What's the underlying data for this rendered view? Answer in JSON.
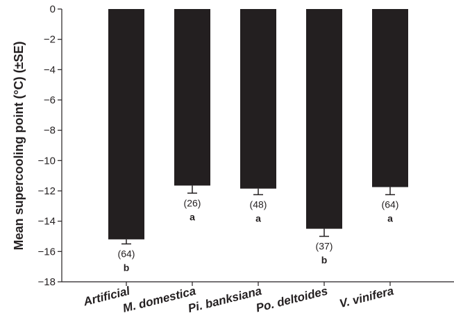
{
  "chart_data": {
    "type": "bar",
    "title": "",
    "xlabel": "",
    "ylabel": "Mean supercooling point (°C) (±SE)",
    "ylim": [
      -18,
      0
    ],
    "yticks": [
      0,
      -2,
      -4,
      -6,
      -8,
      -10,
      -12,
      -14,
      -16,
      -18
    ],
    "ytick_labels": [
      "0",
      "−2",
      "−4",
      "−6",
      "−8",
      "−10",
      "−12",
      "−14",
      "−16",
      "−18"
    ],
    "categories": [
      "Artificial",
      "M. domestica",
      "Pi. banksiana",
      "Po. deltoides",
      "V. vinifera"
    ],
    "values": [
      -15.2,
      -11.65,
      -11.85,
      -14.5,
      -11.75
    ],
    "errors": [
      0.3,
      0.5,
      0.4,
      0.5,
      0.5
    ],
    "n_labels": [
      "(64)",
      "(26)",
      "(48)",
      "(37)",
      "(64)"
    ],
    "significance": [
      "b",
      "a",
      "a",
      "b",
      "a"
    ],
    "grid": false,
    "bar_color": "#231f20"
  }
}
